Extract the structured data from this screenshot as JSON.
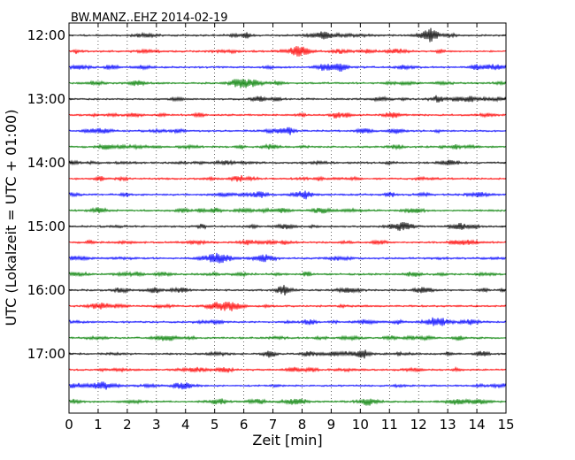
{
  "chart_data": {
    "type": "line",
    "title": "BW.MANZ..EHZ 2014-02-19",
    "xlabel": "Zeit  [min]",
    "ylabel": "UTC (Lokalzeit = UTC + 01:00)",
    "xlim": [
      0,
      15
    ],
    "x_ticks": [
      "0",
      "1",
      "2",
      "3",
      "4",
      "5",
      "6",
      "7",
      "8",
      "9",
      "10",
      "11",
      "12",
      "13",
      "14",
      "15"
    ],
    "y_ticks": [
      "12:00",
      "13:00",
      "14:00",
      "15:00",
      "16:00",
      "17:00"
    ],
    "trace_interval_minutes": 15,
    "trace_start": "12:00",
    "trace_count": 24,
    "trace_colors": [
      "#000000",
      "#ff0000",
      "#0000ff",
      "#007f00"
    ],
    "grid": "vertical-dotted"
  }
}
